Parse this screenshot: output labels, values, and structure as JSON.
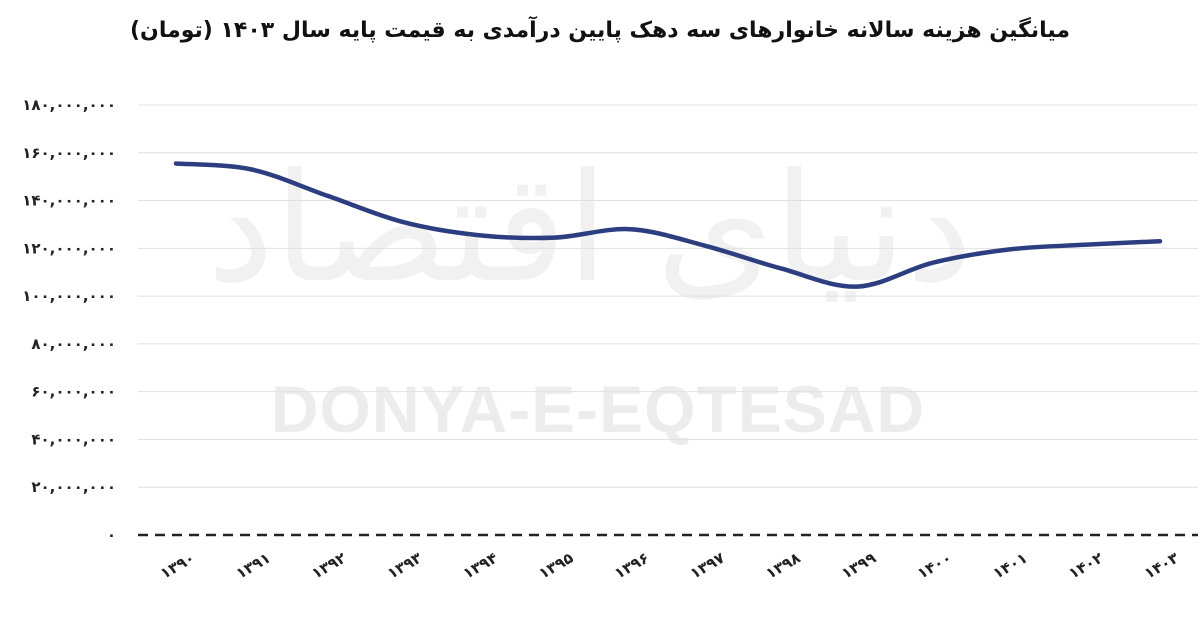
{
  "watermark": {
    "latin": "DONYA-E-EQTESAD",
    "arabic": "دنیای اقتصاد"
  },
  "chart_data": {
    "type": "line",
    "title": "میانگین هزینه سالانه خانوارهای سه دهک پایین درآمدی به قیمت پایه سال ۱۴۰۳ (تومان)",
    "xlabel": "",
    "ylabel": "",
    "x": [
      "۱۳۹۰",
      "۱۳۹۱",
      "۱۳۹۲",
      "۱۳۹۳",
      "۱۳۹۴",
      "۱۳۹۵",
      "۱۳۹۶",
      "۱۳۹۷",
      "۱۳۹۸",
      "۱۳۹۹",
      "۱۴۰۰",
      "۱۴۰۱",
      "۱۴۰۲",
      "۱۴۰۳"
    ],
    "y_ticks": [
      0,
      20000000,
      40000000,
      60000000,
      80000000,
      100000000,
      120000000,
      140000000,
      160000000,
      180000000
    ],
    "y_tick_labels": [
      "۰",
      "۲۰,۰۰۰,۰۰۰",
      "۴۰,۰۰۰,۰۰۰",
      "۶۰,۰۰۰,۰۰۰",
      "۸۰,۰۰۰,۰۰۰",
      "۱۰۰,۰۰۰,۰۰۰",
      "۱۲۰,۰۰۰,۰۰۰",
      "۱۴۰,۰۰۰,۰۰۰",
      "۱۶۰,۰۰۰,۰۰۰",
      "۱۸۰,۰۰۰,۰۰۰"
    ],
    "ylim": [
      0,
      180000000
    ],
    "grid": true,
    "legend": "none",
    "series": [
      {
        "values": [
          155500000,
          153000000,
          142000000,
          131000000,
          125500000,
          124500000,
          128000000,
          121000000,
          111500000,
          104000000,
          114000000,
          119500000,
          121500000,
          123000000
        ]
      }
    ],
    "colors": {
      "line": "#2c3e7f",
      "grid": "#e0e0e0",
      "baseline": "#222222",
      "text": "#222222"
    }
  }
}
